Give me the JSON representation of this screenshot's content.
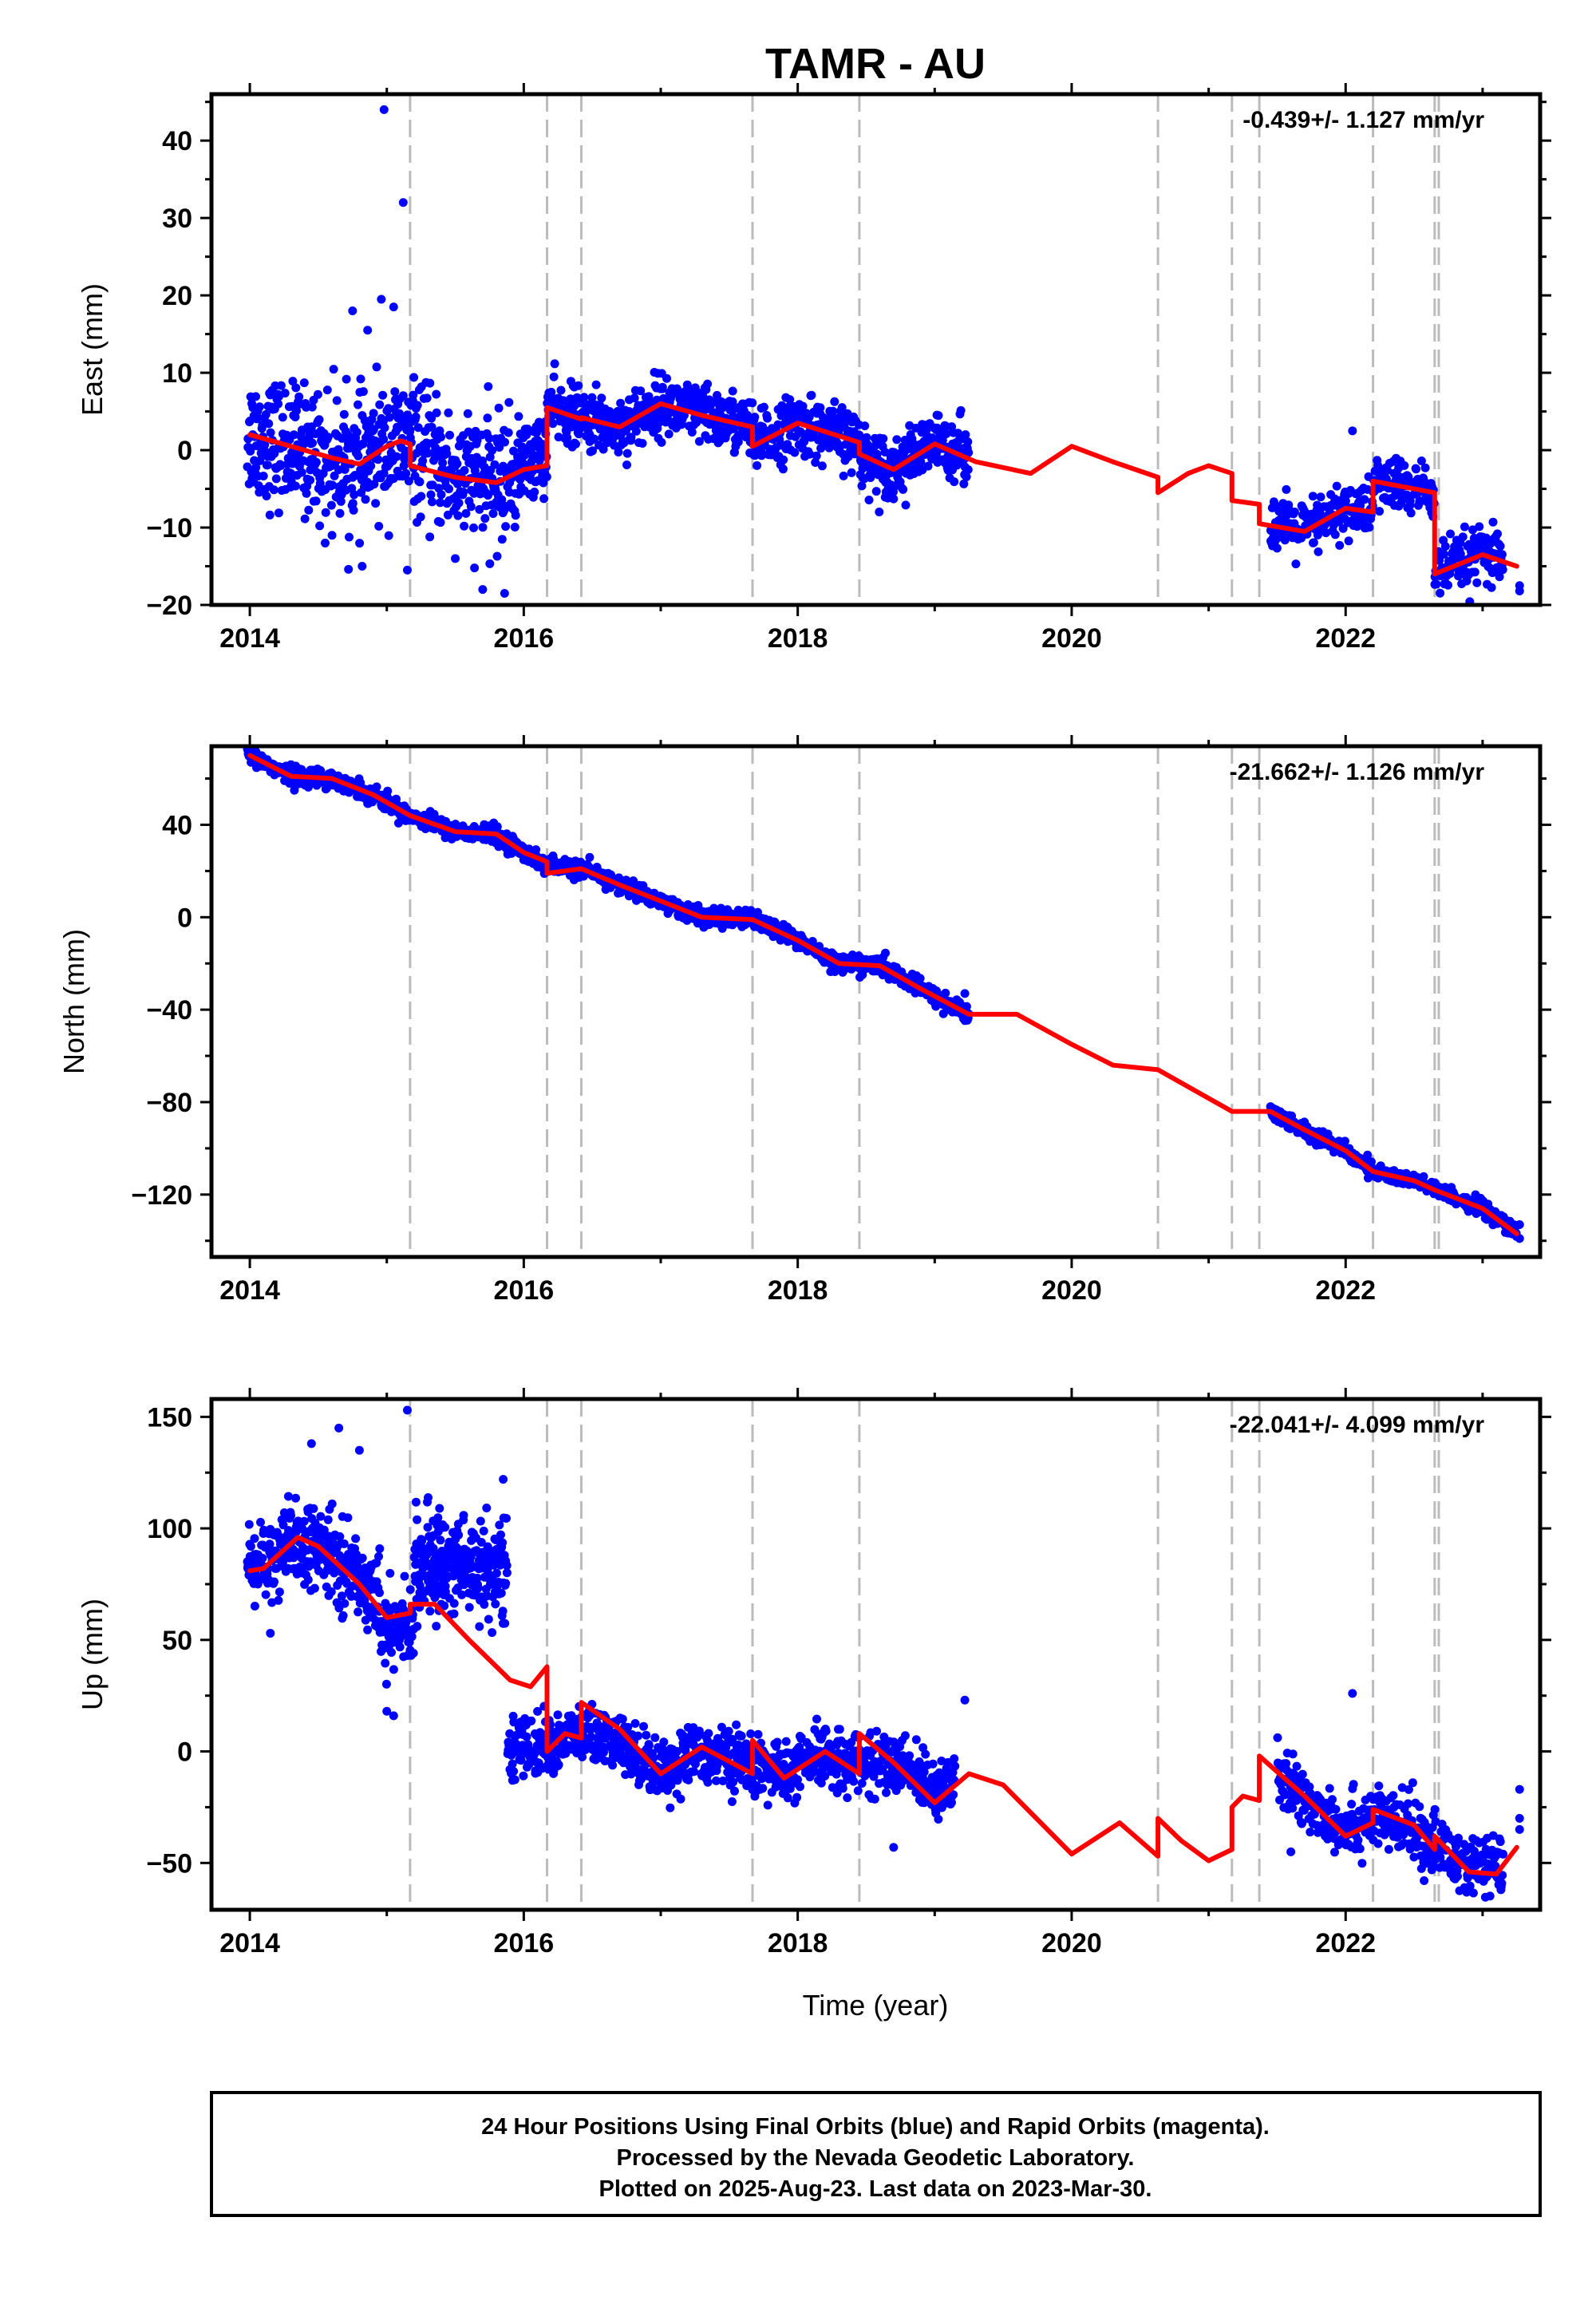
{
  "title": "TAMR - AU",
  "xlabel": "Time (year)",
  "footer": [
    "24 Hour Positions Using Final Orbits (blue) and Rapid Orbits (magenta).",
    "Processed by the Nevada Geodetic Laboratory.",
    "Plotted on 2025-Aug-23. Last data on 2023-Mar-30."
  ],
  "colors": {
    "points": "#0000ff",
    "model": "#ff0000",
    "steps": "#bbbbbb"
  },
  "chart_data": [
    {
      "type": "scatter",
      "component": "east",
      "ylabel": "East (mm)",
      "rate": "-0.439+/- 1.127 mm/yr",
      "xlim": [
        2013.72,
        2023.42
      ],
      "ylim": [
        -20,
        46
      ],
      "xticks": [
        2014,
        2016,
        2018,
        2020,
        2022
      ],
      "yticks": [
        -20,
        -10,
        0,
        10,
        20,
        30,
        40
      ],
      "steps": [
        2015.17,
        2016.17,
        2016.42,
        2017.67,
        2018.45,
        2020.63,
        2021.17,
        2021.37,
        2022.2,
        2022.65,
        2022.68
      ],
      "model": [
        [
          2014.0,
          2.0
        ],
        [
          2014.3,
          0.5
        ],
        [
          2014.6,
          -1.0
        ],
        [
          2014.8,
          -1.8
        ],
        [
          2015.0,
          0.5
        ],
        [
          2015.1,
          1.2
        ],
        [
          2015.17,
          0.8
        ],
        [
          2015.17,
          -2.0
        ],
        [
          2015.5,
          -3.5
        ],
        [
          2015.8,
          -4.2
        ],
        [
          2016.0,
          -2.5
        ],
        [
          2016.17,
          -2.0
        ],
        [
          2016.17,
          5.5
        ],
        [
          2016.42,
          4.0
        ],
        [
          2016.42,
          4.2
        ],
        [
          2016.7,
          3.0
        ],
        [
          2017.0,
          6.0
        ],
        [
          2017.3,
          4.5
        ],
        [
          2017.67,
          3.0
        ],
        [
          2017.67,
          0.5
        ],
        [
          2018.0,
          3.5
        ],
        [
          2018.45,
          1.0
        ],
        [
          2018.45,
          -0.5
        ],
        [
          2018.7,
          -2.5
        ],
        [
          2019.0,
          0.8
        ],
        [
          2019.3,
          -1.5
        ],
        [
          2019.7,
          -3.0
        ],
        [
          2020.0,
          0.5
        ],
        [
          2020.3,
          -1.5
        ],
        [
          2020.63,
          -3.5
        ],
        [
          2020.63,
          -5.5
        ],
        [
          2020.85,
          -3.0
        ],
        [
          2021.0,
          -2.0
        ],
        [
          2021.17,
          -3.0
        ],
        [
          2021.17,
          -6.5
        ],
        [
          2021.37,
          -7.0
        ],
        [
          2021.37,
          -9.5
        ],
        [
          2021.7,
          -10.5
        ],
        [
          2022.0,
          -7.5
        ],
        [
          2022.2,
          -8.0
        ],
        [
          2022.2,
          -4.0
        ],
        [
          2022.65,
          -5.5
        ],
        [
          2022.65,
          -16.0
        ],
        [
          2023.0,
          -13.5
        ],
        [
          2023.25,
          -15.0
        ]
      ],
      "segments": [
        {
          "x": [
            2013.98,
            2015.95
          ],
          "trend": [
            [
              2014.0,
              2.0
            ],
            [
              2014.3,
              0.5
            ],
            [
              2014.6,
              -1.0
            ],
            [
              2014.8,
              -1.8
            ],
            [
              2015.0,
              0.5
            ],
            [
              2015.17,
              1.0
            ],
            [
              2015.5,
              -3.5
            ],
            [
              2015.8,
              -4.2
            ],
            [
              2015.95,
              -3.0
            ]
          ],
          "sd": 4.0,
          "n": 620
        },
        {
          "x": [
            2015.95,
            2016.17
          ],
          "trend": [
            [
              2015.95,
              -2.0
            ],
            [
              2016.17,
              0.0
            ]
          ],
          "sd": 2.5,
          "n": 80
        },
        {
          "x": [
            2016.17,
            2019.25
          ],
          "trend": [
            [
              2016.17,
              5.5
            ],
            [
              2016.42,
              4.0
            ],
            [
              2016.7,
              3.0
            ],
            [
              2017.0,
              6.0
            ],
            [
              2017.3,
              4.5
            ],
            [
              2017.67,
              3.0
            ],
            [
              2017.67,
              0.5
            ],
            [
              2018.0,
              3.5
            ],
            [
              2018.45,
              1.0
            ],
            [
              2018.45,
              -0.5
            ],
            [
              2018.7,
              -2.5
            ],
            [
              2019.0,
              0.8
            ],
            [
              2019.25,
              0.0
            ]
          ],
          "sd": 1.9,
          "n": 950
        },
        {
          "x": [
            2021.45,
            2023.15
          ],
          "trend": [
            [
              2021.45,
              -9.5
            ],
            [
              2021.7,
              -10.5
            ],
            [
              2022.0,
              -7.5
            ],
            [
              2022.2,
              -8.0
            ],
            [
              2022.2,
              -4.0
            ],
            [
              2022.65,
              -5.5
            ],
            [
              2022.65,
              -16.0
            ],
            [
              2023.0,
              -13.5
            ],
            [
              2023.15,
              -14.5
            ]
          ],
          "sd": 1.8,
          "n": 430
        }
      ],
      "outliers": [
        [
          2014.98,
          44
        ],
        [
          2015.12,
          32
        ],
        [
          2014.96,
          19.5
        ],
        [
          2015.05,
          18.5
        ],
        [
          2014.75,
          18
        ],
        [
          2014.86,
          15.5
        ],
        [
          2014.55,
          -12
        ],
        [
          2014.82,
          -15
        ],
        [
          2015.15,
          -15.5
        ],
        [
          2015.7,
          -18
        ],
        [
          2015.86,
          -18.5
        ],
        [
          2022.05,
          2.5
        ],
        [
          2023.27,
          -17.5
        ],
        [
          2023.27,
          -18.2
        ],
        [
          2014.6,
          -11
        ],
        [
          2015.5,
          -14
        ]
      ]
    },
    {
      "type": "scatter",
      "component": "north",
      "ylabel": "North (mm)",
      "rate": "-21.662+/- 1.126 mm/yr",
      "xlim": [
        2013.72,
        2023.42
      ],
      "ylim": [
        -147,
        74
      ],
      "xticks": [
        2014,
        2016,
        2018,
        2020,
        2022
      ],
      "yticks": [
        -120,
        -80,
        -40,
        0,
        40
      ],
      "steps": [
        2015.17,
        2016.17,
        2016.42,
        2017.67,
        2018.45,
        2020.63,
        2021.17,
        2021.37,
        2022.2,
        2022.65,
        2022.68
      ],
      "model": [
        [
          2014.0,
          70
        ],
        [
          2014.3,
          61
        ],
        [
          2014.6,
          60
        ],
        [
          2014.9,
          53
        ],
        [
          2015.17,
          44
        ],
        [
          2015.5,
          37
        ],
        [
          2015.8,
          36
        ],
        [
          2016.0,
          28
        ],
        [
          2016.17,
          24
        ],
        [
          2016.17,
          19
        ],
        [
          2016.42,
          21
        ],
        [
          2016.7,
          14
        ],
        [
          2017.0,
          7
        ],
        [
          2017.3,
          0
        ],
        [
          2017.67,
          -1
        ],
        [
          2018.0,
          -10
        ],
        [
          2018.3,
          -20
        ],
        [
          2018.6,
          -21
        ],
        [
          2018.9,
          -31
        ],
        [
          2019.25,
          -42
        ],
        [
          2019.6,
          -42
        ],
        [
          2020.0,
          -55
        ],
        [
          2020.3,
          -64
        ],
        [
          2020.63,
          -66
        ],
        [
          2020.9,
          -75
        ],
        [
          2021.17,
          -84
        ],
        [
          2021.45,
          -84
        ],
        [
          2021.7,
          -92
        ],
        [
          2022.0,
          -101
        ],
        [
          2022.2,
          -110
        ],
        [
          2022.5,
          -114
        ],
        [
          2022.65,
          -118
        ],
        [
          2023.0,
          -126
        ],
        [
          2023.25,
          -137
        ]
      ],
      "segments": [
        {
          "x": [
            2013.98,
            2019.25
          ],
          "trend": [
            [
              2014.0,
              70
            ],
            [
              2014.3,
              61
            ],
            [
              2014.6,
              60
            ],
            [
              2014.9,
              53
            ],
            [
              2015.17,
              44
            ],
            [
              2015.5,
              37
            ],
            [
              2015.8,
              36
            ],
            [
              2016.0,
              28
            ],
            [
              2016.17,
              22
            ],
            [
              2016.42,
              21
            ],
            [
              2016.7,
              14
            ],
            [
              2017.0,
              7
            ],
            [
              2017.3,
              0
            ],
            [
              2017.67,
              -1
            ],
            [
              2018.0,
              -10
            ],
            [
              2018.3,
              -20
            ],
            [
              2018.6,
              -21
            ],
            [
              2018.9,
              -31
            ],
            [
              2019.25,
              -42
            ]
          ],
          "sd": 1.8,
          "n": 1550
        },
        {
          "x": [
            2021.45,
            2023.25
          ],
          "trend": [
            [
              2021.45,
              -84
            ],
            [
              2021.7,
              -92
            ],
            [
              2022.0,
              -101
            ],
            [
              2022.2,
              -110
            ],
            [
              2022.5,
              -114
            ],
            [
              2022.65,
              -118
            ],
            [
              2023.0,
              -126
            ],
            [
              2023.25,
              -137
            ]
          ],
          "sd": 1.6,
          "n": 480
        }
      ],
      "outliers": [
        [
          2023.27,
          -133
        ],
        [
          2023.27,
          -139
        ],
        [
          2019.22,
          -33
        ],
        [
          2014.3,
          66
        ]
      ]
    },
    {
      "type": "scatter",
      "component": "up",
      "ylabel": "Up (mm)",
      "rate": "-22.041+/- 4.099 mm/yr",
      "xlim": [
        2013.72,
        2023.42
      ],
      "ylim": [
        -71,
        158
      ],
      "xticks": [
        2014,
        2016,
        2018,
        2020,
        2022
      ],
      "yticks": [
        -50,
        0,
        50,
        100,
        150
      ],
      "steps": [
        2015.17,
        2016.17,
        2016.42,
        2017.67,
        2018.45,
        2020.63,
        2021.17,
        2021.37,
        2022.2,
        2022.65,
        2022.68
      ],
      "model": [
        [
          2014.0,
          81
        ],
        [
          2014.1,
          82
        ],
        [
          2014.35,
          96
        ],
        [
          2014.5,
          92
        ],
        [
          2014.8,
          75
        ],
        [
          2015.0,
          60
        ],
        [
          2015.17,
          62
        ],
        [
          2015.17,
          66
        ],
        [
          2015.35,
          66
        ],
        [
          2015.6,
          50
        ],
        [
          2015.9,
          32
        ],
        [
          2016.05,
          29
        ],
        [
          2016.17,
          38
        ],
        [
          2016.17,
          0
        ],
        [
          2016.3,
          8
        ],
        [
          2016.42,
          6
        ],
        [
          2016.42,
          22
        ],
        [
          2016.7,
          10
        ],
        [
          2017.0,
          -10
        ],
        [
          2017.3,
          2
        ],
        [
          2017.67,
          -10
        ],
        [
          2017.67,
          5
        ],
        [
          2017.9,
          -12
        ],
        [
          2018.2,
          0
        ],
        [
          2018.45,
          -10
        ],
        [
          2018.45,
          8
        ],
        [
          2018.7,
          -5
        ],
        [
          2019.0,
          -23
        ],
        [
          2019.25,
          -10
        ],
        [
          2019.5,
          -15
        ],
        [
          2020.0,
          -46
        ],
        [
          2020.35,
          -32
        ],
        [
          2020.63,
          -47
        ],
        [
          2020.63,
          -30
        ],
        [
          2020.8,
          -40
        ],
        [
          2021.0,
          -49
        ],
        [
          2021.17,
          -44
        ],
        [
          2021.17,
          -25
        ],
        [
          2021.25,
          -20
        ],
        [
          2021.37,
          -22
        ],
        [
          2021.37,
          -2
        ],
        [
          2021.7,
          -20
        ],
        [
          2022.0,
          -38
        ],
        [
          2022.2,
          -32
        ],
        [
          2022.2,
          -26
        ],
        [
          2022.5,
          -33
        ],
        [
          2022.65,
          -44
        ],
        [
          2022.65,
          -38
        ],
        [
          2022.9,
          -54
        ],
        [
          2023.1,
          -55
        ],
        [
          2023.25,
          -43
        ]
      ],
      "segments": [
        {
          "x": [
            2013.98,
            2014.95
          ],
          "trend": [
            [
              2014.0,
              83
            ],
            [
              2014.35,
              93
            ],
            [
              2014.6,
              88
            ],
            [
              2014.95,
              70
            ]
          ],
          "sd": 9,
          "n": 330
        },
        {
          "x": [
            2014.95,
            2015.2
          ],
          "trend": [
            [
              2014.95,
              55
            ],
            [
              2015.2,
              55
            ]
          ],
          "sd": 9,
          "n": 70
        },
        {
          "x": [
            2015.2,
            2015.88
          ],
          "trend": [
            [
              2015.2,
              83
            ],
            [
              2015.5,
              85
            ],
            [
              2015.88,
              80
            ]
          ],
          "sd": 11,
          "n": 280
        },
        {
          "x": [
            2015.88,
            2019.15
          ],
          "trend": [
            [
              2015.88,
              2
            ],
            [
              2016.17,
              2
            ],
            [
              2016.42,
              8
            ],
            [
              2016.7,
              3
            ],
            [
              2017.0,
              -8
            ],
            [
              2017.3,
              0
            ],
            [
              2017.67,
              -6
            ],
            [
              2017.9,
              -10
            ],
            [
              2018.2,
              -2
            ],
            [
              2018.45,
              -5
            ],
            [
              2018.7,
              -6
            ],
            [
              2019.0,
              -15
            ],
            [
              2019.15,
              -16
            ]
          ],
          "sd": 6.5,
          "n": 1050
        },
        {
          "x": [
            2021.5,
            2023.15
          ],
          "trend": [
            [
              2021.5,
              -12
            ],
            [
              2021.7,
              -22
            ],
            [
              2022.0,
              -33
            ],
            [
              2022.2,
              -30
            ],
            [
              2022.5,
              -35
            ],
            [
              2022.65,
              -42
            ],
            [
              2022.9,
              -52
            ],
            [
              2023.15,
              -52
            ]
          ],
          "sd": 7,
          "n": 430
        }
      ],
      "outliers": [
        [
          2015.15,
          153
        ],
        [
          2014.65,
          145
        ],
        [
          2014.45,
          138
        ],
        [
          2014.8,
          135
        ],
        [
          2015.85,
          122
        ],
        [
          2014.15,
          53
        ],
        [
          2015.0,
          18
        ],
        [
          2015.05,
          16
        ],
        [
          2018.7,
          -43
        ],
        [
          2019.22,
          23
        ],
        [
          2022.05,
          26
        ],
        [
          2023.27,
          -17
        ],
        [
          2023.27,
          -30
        ],
        [
          2023.27,
          -35
        ],
        [
          2021.6,
          -45
        ]
      ]
    }
  ]
}
